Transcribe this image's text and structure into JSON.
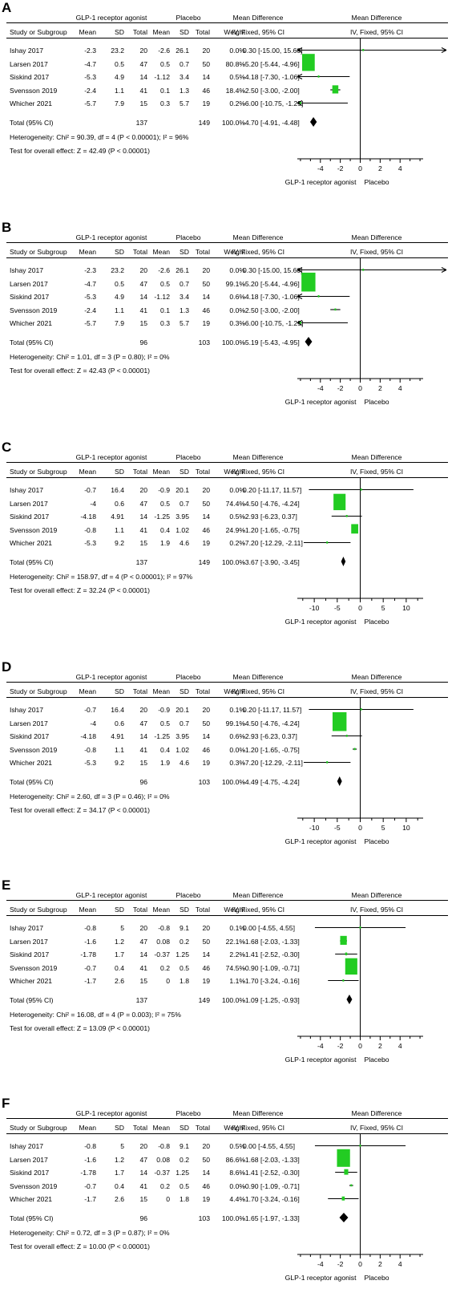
{
  "chart_data": [
    {
      "label": "A",
      "type": "forest",
      "header": {
        "group1": "GLP-1 receptor agonist",
        "group2": "Placebo",
        "effect": "Mean Difference",
        "effect_plot": "Mean Difference",
        "method": "IV, Fixed, 95% CI",
        "method_plot": "IV, Fixed, 95% CI",
        "study": "Study or Subgroup",
        "mean": "Mean",
        "sd": "SD",
        "total": "Total",
        "weight": "Weight"
      },
      "studies": [
        {
          "study": "Ishay 2017",
          "mean1": "-2.3",
          "sd1": "23.2",
          "n1": "20",
          "mean2": "-2.6",
          "sd2": "26.1",
          "n2": "20",
          "weight": "0.0%",
          "ci_text": "0.30 [-15.00, 15.60]",
          "md": 0.3,
          "lo": -15.0,
          "hi": 15.6,
          "w": 0.0
        },
        {
          "study": "Larsen 2017",
          "mean1": "-4.7",
          "sd1": "0.5",
          "n1": "47",
          "mean2": "0.5",
          "sd2": "0.7",
          "n2": "50",
          "weight": "80.8%",
          "ci_text": "-5.20 [-5.44, -4.96]",
          "md": -5.2,
          "lo": -5.44,
          "hi": -4.96,
          "w": 80.8
        },
        {
          "study": "Siskind 2017",
          "mean1": "-5.3",
          "sd1": "4.9",
          "n1": "14",
          "mean2": "-1.12",
          "sd2": "3.4",
          "n2": "14",
          "weight": "0.5%",
          "ci_text": "-4.18 [-7.30, -1.06]",
          "md": -4.18,
          "lo": -7.3,
          "hi": -1.06,
          "w": 0.5
        },
        {
          "study": "Svensson 2019",
          "mean1": "-2.4",
          "sd1": "1.1",
          "n1": "41",
          "mean2": "0.1",
          "sd2": "1.3",
          "n2": "46",
          "weight": "18.4%",
          "ci_text": "-2.50 [-3.00, -2.00]",
          "md": -2.5,
          "lo": -3.0,
          "hi": -2.0,
          "w": 18.4
        },
        {
          "study": "Whicher 2021",
          "mean1": "-5.7",
          "sd1": "7.9",
          "n1": "15",
          "mean2": "0.3",
          "sd2": "5.7",
          "n2": "19",
          "weight": "0.2%",
          "ci_text": "-6.00 [-10.75, -1.25]",
          "md": -6.0,
          "lo": -10.75,
          "hi": -1.25,
          "w": 0.2
        }
      ],
      "total": {
        "label": "Total (95% CI)",
        "n1": "137",
        "n2": "149",
        "weight": "100.0%",
        "ci_text": "-4.70 [-4.91, -4.48]",
        "md": -4.7,
        "lo": -4.91,
        "hi": -4.48
      },
      "heterogeneity": "Heterogeneity: Chi² = 90.39, df = 4 (P < 0.00001); I² = 96%",
      "overall": "Test for overall effect: Z = 42.49 (P < 0.00001)",
      "axis": {
        "min": -6,
        "max": 6,
        "ticks": [
          -4,
          -2,
          0,
          2,
          4
        ],
        "favours_left": "GLP-1 receptor agonist",
        "favours_right": "Placebo"
      }
    },
    {
      "label": "B",
      "type": "forest",
      "header": {
        "group1": "GLP-1 receptor agonist",
        "group2": "Placebo",
        "effect": "Mean Difference",
        "effect_plot": "Mean Difference",
        "method": "IV, Fixed, 95% CI",
        "method_plot": "IV, Fixed, 95% CI",
        "study": "Study or Subgroup",
        "mean": "Mean",
        "sd": "SD",
        "total": "Total",
        "weight": "Weight"
      },
      "studies": [
        {
          "study": "Ishay 2017",
          "mean1": "-2.3",
          "sd1": "23.2",
          "n1": "20",
          "mean2": "-2.6",
          "sd2": "26.1",
          "n2": "20",
          "weight": "0.0%",
          "ci_text": "0.30 [-15.00, 15.60]",
          "md": 0.3,
          "lo": -15.0,
          "hi": 15.6,
          "w": 0.0
        },
        {
          "study": "Larsen 2017",
          "mean1": "-4.7",
          "sd1": "0.5",
          "n1": "47",
          "mean2": "0.5",
          "sd2": "0.7",
          "n2": "50",
          "weight": "99.1%",
          "ci_text": "-5.20 [-5.44, -4.96]",
          "md": -5.2,
          "lo": -5.44,
          "hi": -4.96,
          "w": 99.1
        },
        {
          "study": "Siskind 2017",
          "mean1": "-5.3",
          "sd1": "4.9",
          "n1": "14",
          "mean2": "-1.12",
          "sd2": "3.4",
          "n2": "14",
          "weight": "0.6%",
          "ci_text": "-4.18 [-7.30, -1.06]",
          "md": -4.18,
          "lo": -7.3,
          "hi": -1.06,
          "w": 0.6
        },
        {
          "study": "Svensson 2019",
          "mean1": "-2.4",
          "sd1": "1.1",
          "n1": "41",
          "mean2": "0.1",
          "sd2": "1.3",
          "n2": "46",
          "weight": "0.0%",
          "ci_text": "-2.50 [-3.00, -2.00]",
          "md": -2.5,
          "lo": -3.0,
          "hi": -2.0,
          "w": 0.0
        },
        {
          "study": "Whicher 2021",
          "mean1": "-5.7",
          "sd1": "7.9",
          "n1": "15",
          "mean2": "0.3",
          "sd2": "5.7",
          "n2": "19",
          "weight": "0.3%",
          "ci_text": "-6.00 [-10.75, -1.25]",
          "md": -6.0,
          "lo": -10.75,
          "hi": -1.25,
          "w": 0.3
        }
      ],
      "total": {
        "label": "Total (95% CI)",
        "n1": "96",
        "n2": "103",
        "weight": "100.0%",
        "ci_text": "-5.19 [-5.43, -4.95]",
        "md": -5.19,
        "lo": -5.43,
        "hi": -4.95
      },
      "heterogeneity": "Heterogeneity: Chi² = 1.01, df = 3 (P = 0.80); I² = 0%",
      "overall": "Test for overall effect: Z = 42.43 (P < 0.00001)",
      "axis": {
        "min": -6,
        "max": 6,
        "ticks": [
          -4,
          -2,
          0,
          2,
          4
        ],
        "favours_left": "GLP-1 receptor agonist",
        "favours_right": "Placebo"
      }
    },
    {
      "label": "C",
      "type": "forest",
      "header": {
        "group1": "GLP-1 receptor agonist",
        "group2": "Placebo",
        "effect": "Mean Difference",
        "effect_plot": "Mean Difference",
        "method": "IV, Fixed, 95% CI",
        "method_plot": "IV, Fixed, 95% CI",
        "study": "Study or Subgroup",
        "mean": "Mean",
        "sd": "SD",
        "total": "Total",
        "weight": "Weight"
      },
      "studies": [
        {
          "study": "Ishay 2017",
          "mean1": "-0.7",
          "sd1": "16.4",
          "n1": "20",
          "mean2": "-0.9",
          "sd2": "20.1",
          "n2": "20",
          "weight": "0.0%",
          "ci_text": "0.20 [-11.17, 11.57]",
          "md": 0.2,
          "lo": -11.17,
          "hi": 11.57,
          "w": 0.0
        },
        {
          "study": "Larsen 2017",
          "mean1": "-4",
          "sd1": "0.6",
          "n1": "47",
          "mean2": "0.5",
          "sd2": "0.7",
          "n2": "50",
          "weight": "74.4%",
          "ci_text": "-4.50 [-4.76, -4.24]",
          "md": -4.5,
          "lo": -4.76,
          "hi": -4.24,
          "w": 74.4
        },
        {
          "study": "Siskind 2017",
          "mean1": "-4.18",
          "sd1": "4.91",
          "n1": "14",
          "mean2": "-1.25",
          "sd2": "3.95",
          "n2": "14",
          "weight": "0.5%",
          "ci_text": "-2.93 [-6.23, 0.37]",
          "md": -2.93,
          "lo": -6.23,
          "hi": 0.37,
          "w": 0.5
        },
        {
          "study": "Svensson 2019",
          "mean1": "-0.8",
          "sd1": "1.1",
          "n1": "41",
          "mean2": "0.4",
          "sd2": "1.02",
          "n2": "46",
          "weight": "24.9%",
          "ci_text": "-1.20 [-1.65, -0.75]",
          "md": -1.2,
          "lo": -1.65,
          "hi": -0.75,
          "w": 24.9
        },
        {
          "study": "Whicher 2021",
          "mean1": "-5.3",
          "sd1": "9.2",
          "n1": "15",
          "mean2": "1.9",
          "sd2": "4.6",
          "n2": "19",
          "weight": "0.2%",
          "ci_text": "-7.20 [-12.29, -2.11]",
          "md": -7.2,
          "lo": -12.29,
          "hi": -2.11,
          "w": 0.2
        }
      ],
      "total": {
        "label": "Total (95% CI)",
        "n1": "137",
        "n2": "149",
        "weight": "100.0%",
        "ci_text": "-3.67 [-3.90, -3.45]",
        "md": -3.67,
        "lo": -3.9,
        "hi": -3.45
      },
      "heterogeneity": "Heterogeneity: Chi² = 158.97, df = 4 (P < 0.00001); I² = 97%",
      "overall": "Test for overall effect: Z = 32.24 (P < 0.00001)",
      "axis": {
        "min": -13,
        "max": 13,
        "ticks": [
          -10,
          -5,
          0,
          5,
          10
        ],
        "favours_left": "GLP-1 receptor agonist",
        "favours_right": "Placebo"
      }
    },
    {
      "label": "D",
      "type": "forest",
      "header": {
        "group1": "GLP-1 receptor agonist",
        "group2": "Placebo",
        "effect": "Mean Difference",
        "effect_plot": "Mean Difference",
        "method": "IV, Fixed, 95% CI",
        "method_plot": "IV, Fixed, 95% CI",
        "study": "Study or Subgroup",
        "mean": "Mean",
        "sd": "SD",
        "total": "Total",
        "weight": "Weight"
      },
      "studies": [
        {
          "study": "Ishay 2017",
          "mean1": "-0.7",
          "sd1": "16.4",
          "n1": "20",
          "mean2": "-0.9",
          "sd2": "20.1",
          "n2": "20",
          "weight": "0.1%",
          "ci_text": "0.20 [-11.17, 11.57]",
          "md": 0.2,
          "lo": -11.17,
          "hi": 11.57,
          "w": 0.1
        },
        {
          "study": "Larsen 2017",
          "mean1": "-4",
          "sd1": "0.6",
          "n1": "47",
          "mean2": "0.5",
          "sd2": "0.7",
          "n2": "50",
          "weight": "99.1%",
          "ci_text": "-4.50 [-4.76, -4.24]",
          "md": -4.5,
          "lo": -4.76,
          "hi": -4.24,
          "w": 99.1
        },
        {
          "study": "Siskind 2017",
          "mean1": "-4.18",
          "sd1": "4.91",
          "n1": "14",
          "mean2": "-1.25",
          "sd2": "3.95",
          "n2": "14",
          "weight": "0.6%",
          "ci_text": "-2.93 [-6.23, 0.37]",
          "md": -2.93,
          "lo": -6.23,
          "hi": 0.37,
          "w": 0.6
        },
        {
          "study": "Svensson 2019",
          "mean1": "-0.8",
          "sd1": "1.1",
          "n1": "41",
          "mean2": "0.4",
          "sd2": "1.02",
          "n2": "46",
          "weight": "0.0%",
          "ci_text": "-1.20 [-1.65, -0.75]",
          "md": -1.2,
          "lo": -1.65,
          "hi": -0.75,
          "w": 0.0
        },
        {
          "study": "Whicher 2021",
          "mean1": "-5.3",
          "sd1": "9.2",
          "n1": "15",
          "mean2": "1.9",
          "sd2": "4.6",
          "n2": "19",
          "weight": "0.3%",
          "ci_text": "-7.20 [-12.29, -2.11]",
          "md": -7.2,
          "lo": -12.29,
          "hi": -2.11,
          "w": 0.3
        }
      ],
      "total": {
        "label": "Total (95% CI)",
        "n1": "96",
        "n2": "103",
        "weight": "100.0%",
        "ci_text": "-4.49 [-4.75, -4.24]",
        "md": -4.49,
        "lo": -4.75,
        "hi": -4.24
      },
      "heterogeneity": "Heterogeneity: Chi² = 2.60, df = 3 (P = 0.46); I² = 0%",
      "overall": "Test for overall effect: Z = 34.17 (P < 0.00001)",
      "axis": {
        "min": -13,
        "max": 13,
        "ticks": [
          -10,
          -5,
          0,
          5,
          10
        ],
        "favours_left": "GLP-1 receptor agonist",
        "favours_right": "Placebo"
      }
    },
    {
      "label": "E",
      "type": "forest",
      "header": {
        "group1": "GLP-1 receptor agonist",
        "group2": "Placebo",
        "effect": "Mean Difference",
        "effect_plot": "Mean Difference",
        "method": "IV, Fixed, 95% CI",
        "method_plot": "IV, Fixed, 95% CI",
        "study": "Study or Subgroup",
        "mean": "Mean",
        "sd": "SD",
        "total": "Total",
        "weight": "Weight"
      },
      "studies": [
        {
          "study": "Ishay 2017",
          "mean1": "-0.8",
          "sd1": "5",
          "n1": "20",
          "mean2": "-0.8",
          "sd2": "9.1",
          "n2": "20",
          "weight": "0.1%",
          "ci_text": "0.00 [-4.55, 4.55]",
          "md": 0.0,
          "lo": -4.55,
          "hi": 4.55,
          "w": 0.1
        },
        {
          "study": "Larsen 2017",
          "mean1": "-1.6",
          "sd1": "1.2",
          "n1": "47",
          "mean2": "0.08",
          "sd2": "0.2",
          "n2": "50",
          "weight": "22.1%",
          "ci_text": "-1.68 [-2.03, -1.33]",
          "md": -1.68,
          "lo": -2.03,
          "hi": -1.33,
          "w": 22.1
        },
        {
          "study": "Siskind 2017",
          "mean1": "-1.78",
          "sd1": "1.7",
          "n1": "14",
          "mean2": "-0.37",
          "sd2": "1.25",
          "n2": "14",
          "weight": "2.2%",
          "ci_text": "-1.41 [-2.52, -0.30]",
          "md": -1.41,
          "lo": -2.52,
          "hi": -0.3,
          "w": 2.2
        },
        {
          "study": "Svensson 2019",
          "mean1": "-0.7",
          "sd1": "0.4",
          "n1": "41",
          "mean2": "0.2",
          "sd2": "0.5",
          "n2": "46",
          "weight": "74.5%",
          "ci_text": "-0.90 [-1.09, -0.71]",
          "md": -0.9,
          "lo": -1.09,
          "hi": -0.71,
          "w": 74.5
        },
        {
          "study": "Whicher 2021",
          "mean1": "-1.7",
          "sd1": "2.6",
          "n1": "15",
          "mean2": "0",
          "sd2": "1.8",
          "n2": "19",
          "weight": "1.1%",
          "ci_text": "-1.70 [-3.24, -0.16]",
          "md": -1.7,
          "lo": -3.24,
          "hi": -0.16,
          "w": 1.1
        }
      ],
      "total": {
        "label": "Total (95% CI)",
        "n1": "137",
        "n2": "149",
        "weight": "100.0%",
        "ci_text": "-1.09 [-1.25, -0.93]",
        "md": -1.09,
        "lo": -1.25,
        "hi": -0.93
      },
      "heterogeneity": "Heterogeneity: Chi² = 16.08, df = 4 (P = 0.003); I² = 75%",
      "overall": "Test for overall effect: Z = 13.09 (P < 0.00001)",
      "axis": {
        "min": -6,
        "max": 6,
        "ticks": [
          -4,
          -2,
          0,
          2,
          4
        ],
        "favours_left": "GLP-1 receptor agonist",
        "favours_right": "Placebo"
      }
    },
    {
      "label": "F",
      "type": "forest",
      "header": {
        "group1": "GLP-1 receptor agonist",
        "group2": "Placebo",
        "effect": "Mean Difference",
        "effect_plot": "Mean Difference",
        "method": "IV, Fixed, 95% CI",
        "method_plot": "IV, Fixed, 95% CI",
        "study": "Study or Subgroup",
        "mean": "Mean",
        "sd": "SD",
        "total": "Total",
        "weight": "Weight"
      },
      "studies": [
        {
          "study": "Ishay 2017",
          "mean1": "-0.8",
          "sd1": "5",
          "n1": "20",
          "mean2": "-0.8",
          "sd2": "9.1",
          "n2": "20",
          "weight": "0.5%",
          "ci_text": "0.00 [-4.55, 4.55]",
          "md": 0.0,
          "lo": -4.55,
          "hi": 4.55,
          "w": 0.5
        },
        {
          "study": "Larsen 2017",
          "mean1": "-1.6",
          "sd1": "1.2",
          "n1": "47",
          "mean2": "0.08",
          "sd2": "0.2",
          "n2": "50",
          "weight": "86.6%",
          "ci_text": "-1.68 [-2.03, -1.33]",
          "md": -1.68,
          "lo": -2.03,
          "hi": -1.33,
          "w": 86.6
        },
        {
          "study": "Siskind 2017",
          "mean1": "-1.78",
          "sd1": "1.7",
          "n1": "14",
          "mean2": "-0.37",
          "sd2": "1.25",
          "n2": "14",
          "weight": "8.6%",
          "ci_text": "-1.41 [-2.52, -0.30]",
          "md": -1.41,
          "lo": -2.52,
          "hi": -0.3,
          "w": 8.6
        },
        {
          "study": "Svensson 2019",
          "mean1": "-0.7",
          "sd1": "0.4",
          "n1": "41",
          "mean2": "0.2",
          "sd2": "0.5",
          "n2": "46",
          "weight": "0.0%",
          "ci_text": "-0.90 [-1.09, -0.71]",
          "md": -0.9,
          "lo": -1.09,
          "hi": -0.71,
          "w": 0.0
        },
        {
          "study": "Whicher 2021",
          "mean1": "-1.7",
          "sd1": "2.6",
          "n1": "15",
          "mean2": "0",
          "sd2": "1.8",
          "n2": "19",
          "weight": "4.4%",
          "ci_text": "-1.70 [-3.24, -0.16]",
          "md": -1.7,
          "lo": -3.24,
          "hi": -0.16,
          "w": 4.4
        }
      ],
      "total": {
        "label": "Total (95% CI)",
        "n1": "96",
        "n2": "103",
        "weight": "100.0%",
        "ci_text": "-1.65 [-1.97, -1.33]",
        "md": -1.65,
        "lo": -1.97,
        "hi": -1.33
      },
      "heterogeneity": "Heterogeneity: Chi² = 0.72, df = 3 (P = 0.87); I² = 0%",
      "overall": "Test for overall effect: Z = 10.00 (P < 0.00001)",
      "axis": {
        "min": -6,
        "max": 6,
        "ticks": [
          -4,
          -2,
          0,
          2,
          4
        ],
        "favours_left": "GLP-1 receptor agonist",
        "favours_right": "Placebo"
      }
    }
  ],
  "colors": {
    "square": "#22cc22",
    "diamond": "#000000",
    "line": "#000000"
  }
}
